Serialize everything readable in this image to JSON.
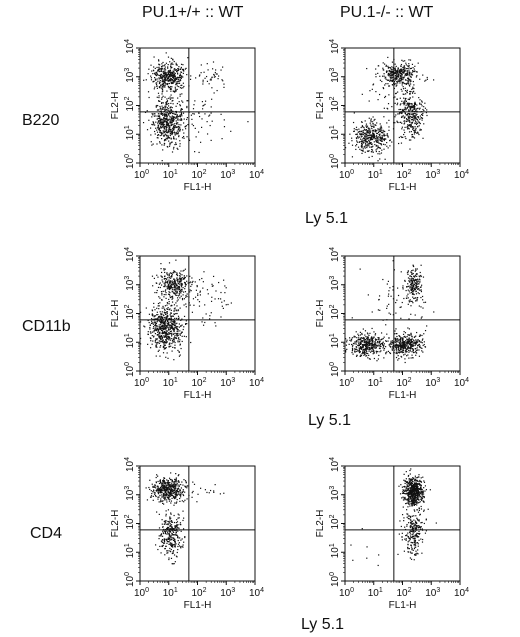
{
  "header": {
    "left": "PU.1+/+ :: WT",
    "right": "PU.1-/- :: WT"
  },
  "colors": {
    "ink": "#111111",
    "background": "#ffffff"
  },
  "axes": {
    "x_label": "FL1-H",
    "y_label": "FL2-H",
    "scale": "log",
    "range": [
      1,
      10000
    ],
    "tick_labels": [
      {
        "base": "10",
        "exp": "0"
      },
      {
        "base": "10",
        "exp": "1"
      },
      {
        "base": "10",
        "exp": "2"
      },
      {
        "base": "10",
        "exp": "3"
      },
      {
        "base": "10",
        "exp": "4"
      }
    ]
  },
  "rows": [
    {
      "label": "B220",
      "sublabel": "Ly 5.1"
    },
    {
      "label": "CD11b",
      "sublabel": "Ly 5.1"
    },
    {
      "label": "CD4",
      "sublabel": "Ly 5.1"
    }
  ],
  "chart_data": [
    {
      "type": "scatter",
      "row": "B220",
      "column": "PU.1+/+ :: WT",
      "xlabel": "FL1-H",
      "ylabel": "FL2-H",
      "xscale": "log",
      "yscale": "log",
      "xlim": [
        1,
        10000
      ],
      "ylim": [
        1,
        10000
      ],
      "quadrant_gate": [
        50,
        60
      ],
      "clusters": [
        {
          "x": 10,
          "y": 1000,
          "sx": 0.3,
          "sy": 0.25,
          "n": 420
        },
        {
          "x": 10,
          "y": 25,
          "sx": 0.28,
          "sy": 0.4,
          "n": 520
        },
        {
          "x": 300,
          "y": 1000,
          "sx": 0.25,
          "sy": 0.25,
          "n": 40
        },
        {
          "x": 120,
          "y": 40,
          "sx": 0.6,
          "sy": 0.6,
          "n": 60
        }
      ]
    },
    {
      "type": "scatter",
      "row": "B220",
      "column": "PU.1-/- :: WT",
      "xlabel": "FL1-H",
      "ylabel": "FL2-H",
      "xscale": "log",
      "yscale": "log",
      "xlim": [
        1,
        10000
      ],
      "ylim": [
        1,
        10000
      ],
      "quadrant_gate": [
        50,
        60
      ],
      "clusters": [
        {
          "x": 8,
          "y": 8,
          "sx": 0.3,
          "sy": 0.28,
          "n": 380
        },
        {
          "x": 80,
          "y": 1200,
          "sx": 0.3,
          "sy": 0.2,
          "n": 330
        },
        {
          "x": 200,
          "y": 50,
          "sx": 0.22,
          "sy": 0.4,
          "n": 330
        },
        {
          "x": 40,
          "y": 200,
          "sx": 0.55,
          "sy": 0.55,
          "n": 60
        }
      ]
    },
    {
      "type": "scatter",
      "row": "CD11b",
      "column": "PU.1+/+ :: WT",
      "xlabel": "FL1-H",
      "ylabel": "FL2-H",
      "xscale": "log",
      "yscale": "log",
      "xlim": [
        1,
        10000
      ],
      "ylim": [
        1,
        10000
      ],
      "quadrant_gate": [
        50,
        60
      ],
      "clusters": [
        {
          "x": 15,
          "y": 1000,
          "sx": 0.3,
          "sy": 0.25,
          "n": 300
        },
        {
          "x": 8,
          "y": 30,
          "sx": 0.3,
          "sy": 0.4,
          "n": 600
        },
        {
          "x": 150,
          "y": 300,
          "sx": 0.55,
          "sy": 0.55,
          "n": 70
        }
      ]
    },
    {
      "type": "scatter",
      "row": "CD11b",
      "column": "PU.1-/- :: WT",
      "xlabel": "FL1-H",
      "ylabel": "FL2-H",
      "xscale": "log",
      "yscale": "log",
      "xlim": [
        1,
        10000
      ],
      "ylim": [
        1,
        10000
      ],
      "quadrant_gate": [
        50,
        60
      ],
      "clusters": [
        {
          "x": 6,
          "y": 8,
          "sx": 0.3,
          "sy": 0.2,
          "n": 380
        },
        {
          "x": 120,
          "y": 8,
          "sx": 0.3,
          "sy": 0.2,
          "n": 400
        },
        {
          "x": 250,
          "y": 1000,
          "sx": 0.15,
          "sy": 0.3,
          "n": 200
        },
        {
          "x": 60,
          "y": 200,
          "sx": 0.6,
          "sy": 0.6,
          "n": 60
        }
      ]
    },
    {
      "type": "scatter",
      "row": "CD4",
      "column": "PU.1+/+ :: WT",
      "xlabel": "FL1-H",
      "ylabel": "FL2-H",
      "xscale": "log",
      "yscale": "log",
      "xlim": [
        1,
        10000
      ],
      "ylim": [
        1,
        10000
      ],
      "quadrant_gate": [
        50,
        60
      ],
      "clusters": [
        {
          "x": 10,
          "y": 1500,
          "sx": 0.3,
          "sy": 0.2,
          "n": 450
        },
        {
          "x": 12,
          "y": 40,
          "sx": 0.2,
          "sy": 0.4,
          "n": 280
        },
        {
          "x": 400,
          "y": 1500,
          "sx": 0.45,
          "sy": 0.15,
          "n": 12
        }
      ]
    },
    {
      "type": "scatter",
      "row": "CD4",
      "column": "PU.1-/- :: WT",
      "xlabel": "FL1-H",
      "ylabel": "FL2-H",
      "xscale": "log",
      "yscale": "log",
      "xlim": [
        1,
        10000
      ],
      "ylim": [
        1,
        10000
      ],
      "quadrant_gate": [
        50,
        60
      ],
      "clusters": [
        {
          "x": 250,
          "y": 1200,
          "sx": 0.17,
          "sy": 0.25,
          "n": 550
        },
        {
          "x": 250,
          "y": 50,
          "sx": 0.2,
          "sy": 0.4,
          "n": 230
        },
        {
          "x": 10,
          "y": 10,
          "sx": 0.5,
          "sy": 0.4,
          "n": 8
        }
      ]
    }
  ]
}
